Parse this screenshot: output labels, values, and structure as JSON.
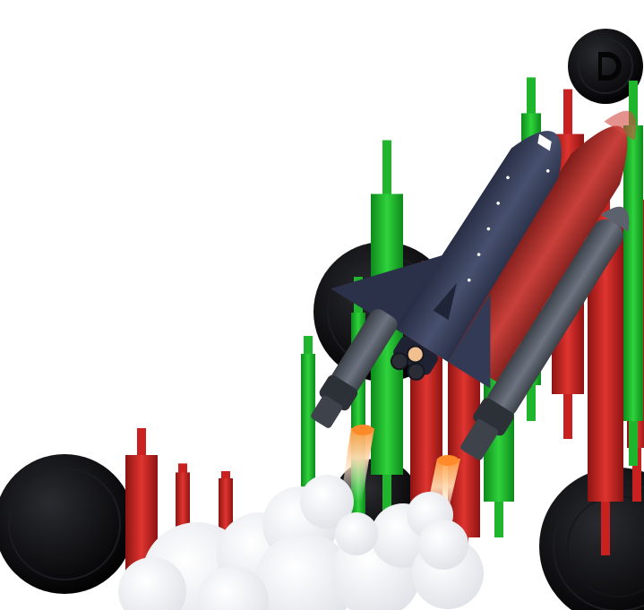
{
  "scene": {
    "subject": "rocket-icon",
    "colors": {
      "background": "#ffffff",
      "candle_green": "#1fb52c",
      "candle_red": "#c8211f",
      "coin_black": "#0d0d0f",
      "shuttle_navy": "#3a4360",
      "tank_red": "#b8302b",
      "booster_gray": "#5d6470",
      "smoke_white": "#eef0f4",
      "flame_glow": "#ffb36b"
    }
  },
  "candles": [
    {
      "color": "red",
      "value": 40
    },
    {
      "color": "red",
      "value": 22
    },
    {
      "color": "red",
      "value": 20
    },
    {
      "color": "green",
      "value": 50
    },
    {
      "color": "green",
      "value": 70
    },
    {
      "color": "green",
      "value": 95
    },
    {
      "color": "red",
      "value": 80
    },
    {
      "color": "red",
      "value": 72
    },
    {
      "color": "green",
      "value": 60
    },
    {
      "color": "green",
      "value": 92
    },
    {
      "color": "red",
      "value": 88
    },
    {
      "color": "red",
      "value": 98
    },
    {
      "color": "red",
      "value": 84
    },
    {
      "color": "green",
      "value": 100
    }
  ]
}
